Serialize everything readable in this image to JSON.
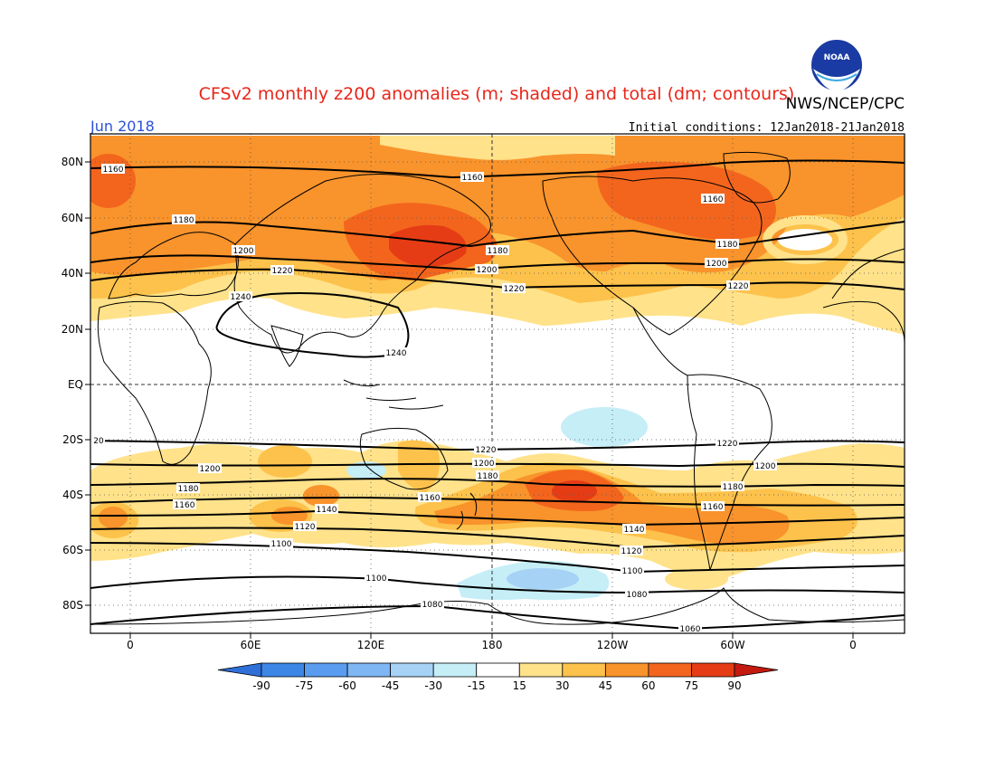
{
  "title": "CFSv2 monthly z200 anomalies (m; shaded) and total (dm; contours)",
  "agency": "NWS/NCEP/CPC",
  "logo_text": "NOAA",
  "month": "Jun 2018",
  "initial_conditions": "Initial conditions: 12Jan2018-21Jan2018",
  "lat_labels": [
    "80N",
    "60N",
    "40N",
    "20N",
    "EQ",
    "20S",
    "40S",
    "60S",
    "80S"
  ],
  "lon_labels": [
    "0",
    "60E",
    "120E",
    "180",
    "120W",
    "60W",
    "0"
  ],
  "colorbar": {
    "ticks": [
      "-90",
      "-75",
      "-60",
      "-45",
      "-30",
      "-15",
      "15",
      "30",
      "45",
      "60",
      "75",
      "90"
    ],
    "colors": [
      "#2f6fd8",
      "#3d86e6",
      "#5a9cf0",
      "#7fb6f4",
      "#a6d2f6",
      "#c5eef7",
      "#ffffff",
      "#ffe28a",
      "#fdc24b",
      "#f9932b",
      "#f3651d",
      "#e53c15",
      "#c41a10"
    ]
  },
  "contours": [
    {
      "label": "1160",
      "region": "north polar"
    },
    {
      "label": "1180",
      "region": "northern mid-latitudes"
    },
    {
      "label": "1200",
      "region": "northern mid-latitudes"
    },
    {
      "label": "1220",
      "region": "northern subtropics"
    },
    {
      "label": "1240",
      "region": "tibetan high"
    },
    {
      "label": "1220",
      "region": "southern subtropics"
    },
    {
      "label": "1200",
      "region": "southern mid-latitudes"
    },
    {
      "label": "1180",
      "region": "southern mid-latitudes"
    },
    {
      "label": "1160",
      "region": "southern mid-latitudes"
    },
    {
      "label": "1140",
      "region": "southern mid-latitudes"
    },
    {
      "label": "1120",
      "region": "southern high latitudes"
    },
    {
      "label": "1100",
      "region": "southern high latitudes"
    },
    {
      "label": "1080",
      "region": "antarctic"
    },
    {
      "label": "1060",
      "region": "antarctic"
    }
  ],
  "contour_labels_text": [
    "1160",
    "1160",
    "1160",
    "1180",
    "1180",
    "1180",
    "1200",
    "1200",
    "1200",
    "1220",
    "1220",
    "1220",
    "1240",
    "1240",
    "20",
    "1220",
    "1220",
    "1200",
    "1200",
    "1200",
    "1180",
    "1180",
    "1180",
    "1160",
    "1160",
    "1160",
    "1140",
    "1140",
    "1120",
    "1120",
    "1100",
    "1100",
    "1100",
    "1080",
    "1080",
    "1080",
    "1060"
  ]
}
